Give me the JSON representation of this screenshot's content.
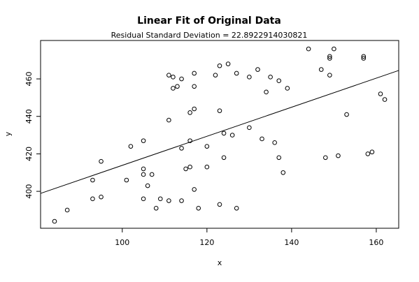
{
  "chart_data": {
    "type": "scatter",
    "title": "Linear Fit of Original Data",
    "subtitle": "Residual Standard Deviation =  22.8922914030821",
    "xlabel": "x",
    "ylabel": "y",
    "color": "#000000",
    "xlim": [
      80.7,
      165.3
    ],
    "ylim": [
      380.3,
      480.5
    ],
    "xticks": [
      100,
      120,
      140,
      160
    ],
    "yticks": [
      400,
      420,
      440,
      460
    ],
    "x": [
      84,
      87,
      93,
      93,
      95,
      95,
      101,
      102,
      105,
      105,
      105,
      105,
      106,
      107,
      108,
      109,
      111,
      111,
      111,
      112,
      112,
      113,
      114,
      114,
      114,
      115,
      116,
      116,
      116,
      117,
      117,
      117,
      117,
      118,
      120,
      120,
      122,
      123,
      123,
      123,
      124,
      124,
      125,
      126,
      127,
      127,
      130,
      130,
      132,
      133,
      134,
      135,
      136,
      137,
      137,
      138,
      139,
      144,
      147,
      148,
      149,
      149,
      149,
      150,
      151,
      153,
      157,
      157,
      158,
      159,
      161,
      162
    ],
    "y": [
      384,
      390,
      406,
      396,
      416,
      397,
      406,
      424,
      427,
      412,
      409,
      396,
      403,
      409,
      391,
      396,
      438,
      395,
      462,
      461,
      455,
      456,
      460,
      423,
      395,
      412,
      442,
      427,
      413,
      444,
      401,
      456,
      463,
      391,
      424,
      413,
      462,
      443,
      467,
      393,
      431,
      418,
      468,
      430,
      463,
      391,
      434,
      461,
      465,
      428,
      453,
      461,
      426,
      459,
      418,
      410,
      455,
      476,
      465,
      418,
      462,
      471,
      472,
      476,
      419,
      441,
      472,
      471,
      420,
      421,
      452,
      449
    ],
    "fit": {
      "x": [
        80.7,
        165.3
      ],
      "y": [
        398.9,
        464.5
      ]
    }
  }
}
